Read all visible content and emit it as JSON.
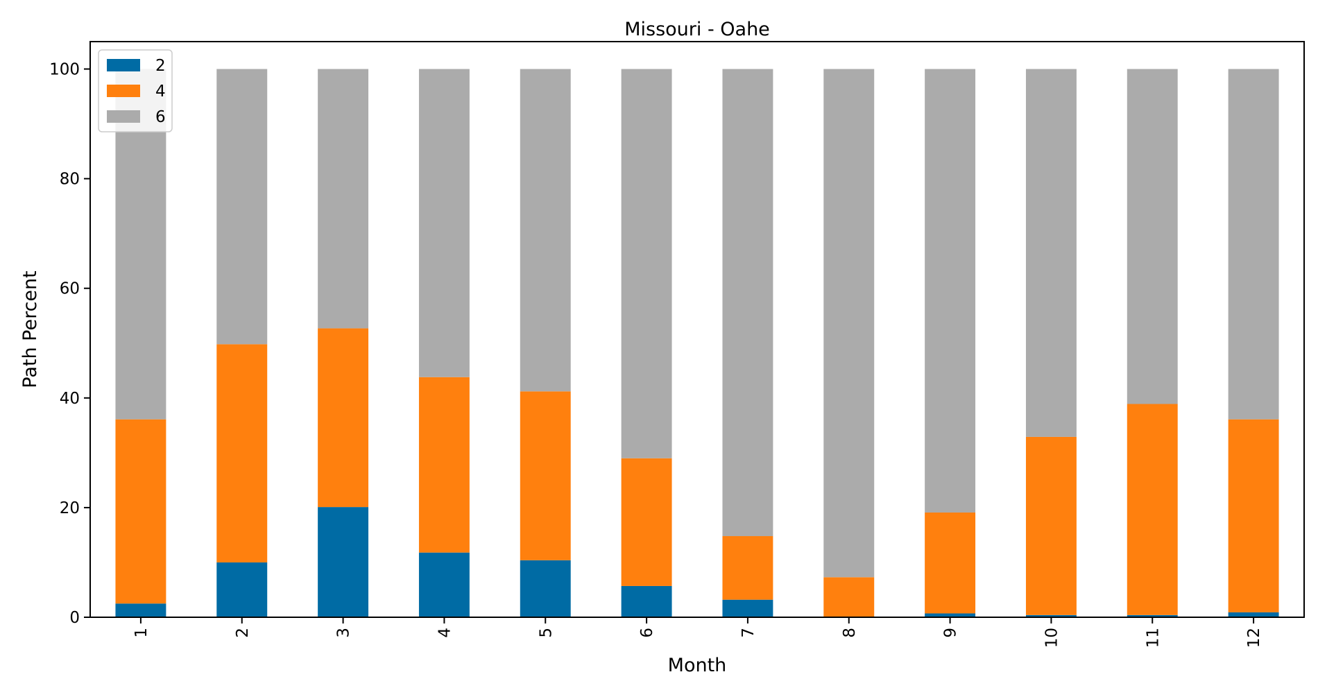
{
  "chart_data": {
    "type": "bar",
    "stacked": true,
    "title": "Missouri - Oahe",
    "xlabel": "Month",
    "ylabel": "Path Percent",
    "categories": [
      "1",
      "2",
      "3",
      "4",
      "5",
      "6",
      "7",
      "8",
      "9",
      "10",
      "11",
      "12"
    ],
    "ylim": [
      0,
      105
    ],
    "yticks": [
      "0",
      "20",
      "40",
      "60",
      "80",
      "100"
    ],
    "grid": false,
    "legend_position": "top-left",
    "series": [
      {
        "name": "2",
        "color": "#006BA4",
        "values": [
          2.5,
          10.0,
          20.1,
          11.8,
          10.4,
          5.7,
          3.2,
          0.1,
          0.7,
          0.4,
          0.4,
          0.9
        ]
      },
      {
        "name": "4",
        "color": "#FF800E",
        "values": [
          33.6,
          39.8,
          32.6,
          32.0,
          30.8,
          23.3,
          11.6,
          7.2,
          18.4,
          32.5,
          38.5,
          35.2
        ]
      },
      {
        "name": "6",
        "color": "#ABABAB",
        "values": [
          63.9,
          50.2,
          47.3,
          56.2,
          58.8,
          71.0,
          85.2,
          92.7,
          80.9,
          67.1,
          61.1,
          63.9
        ]
      }
    ]
  }
}
